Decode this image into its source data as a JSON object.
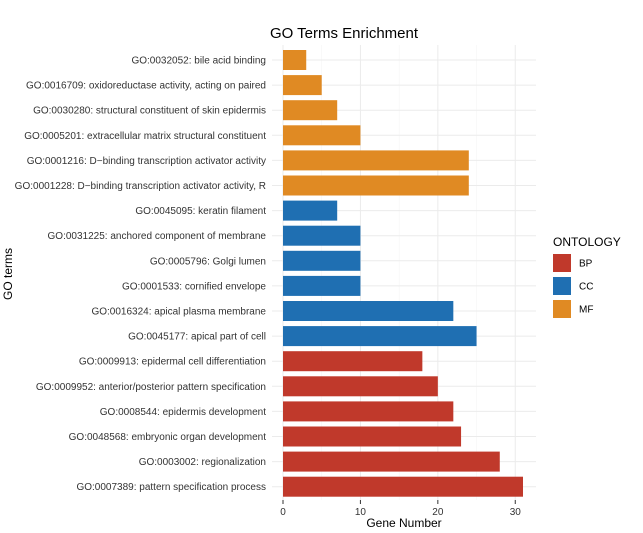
{
  "chart_data": {
    "type": "bar",
    "orientation": "horizontal",
    "title": "GO Terms Enrichment",
    "xlabel": "Gene Number",
    "ylabel": "GO terms",
    "xlim": [
      0,
      32
    ],
    "xticks": [
      0,
      10,
      20,
      30
    ],
    "grid": true,
    "legend": {
      "title": "ONTOLOGY",
      "placement": "right",
      "entries": [
        {
          "name": "BP",
          "color": "#c0392b"
        },
        {
          "name": "CC",
          "color": "#1f6fb2"
        },
        {
          "name": "MF",
          "color": "#e08a23"
        }
      ]
    },
    "bars": [
      {
        "label": "GO:0032052: bile acid binding",
        "value": 3,
        "ontology": "MF"
      },
      {
        "label": "GO:0016709: oxidoreductase activity, acting on paired",
        "value": 5,
        "ontology": "MF"
      },
      {
        "label": "GO:0030280: structural constituent of skin epidermis",
        "value": 7,
        "ontology": "MF"
      },
      {
        "label": "GO:0005201: extracellular matrix structural constituent",
        "value": 10,
        "ontology": "MF"
      },
      {
        "label": "GO:0001216: D−binding transcription activator activity",
        "value": 24,
        "ontology": "MF"
      },
      {
        "label": "GO:0001228: D−binding transcription activator activity, R",
        "value": 24,
        "ontology": "MF"
      },
      {
        "label": "GO:0045095: keratin filament",
        "value": 7,
        "ontology": "CC"
      },
      {
        "label": "GO:0031225: anchored component of membrane",
        "value": 10,
        "ontology": "CC"
      },
      {
        "label": "GO:0005796: Golgi lumen",
        "value": 10,
        "ontology": "CC"
      },
      {
        "label": "GO:0001533: cornified envelope",
        "value": 10,
        "ontology": "CC"
      },
      {
        "label": "GO:0016324: apical plasma membrane",
        "value": 22,
        "ontology": "CC"
      },
      {
        "label": "GO:0045177: apical part of cell",
        "value": 25,
        "ontology": "CC"
      },
      {
        "label": "GO:0009913: epidermal cell differentiation",
        "value": 18,
        "ontology": "BP"
      },
      {
        "label": "GO:0009952: anterior/posterior pattern specification",
        "value": 20,
        "ontology": "BP"
      },
      {
        "label": "GO:0008544: epidermis development",
        "value": 22,
        "ontology": "BP"
      },
      {
        "label": "GO:0048568: embryonic organ development",
        "value": 23,
        "ontology": "BP"
      },
      {
        "label": "GO:0003002: regionalization",
        "value": 28,
        "ontology": "BP"
      },
      {
        "label": "GO:0007389: pattern specification process",
        "value": 31,
        "ontology": "BP"
      }
    ]
  }
}
